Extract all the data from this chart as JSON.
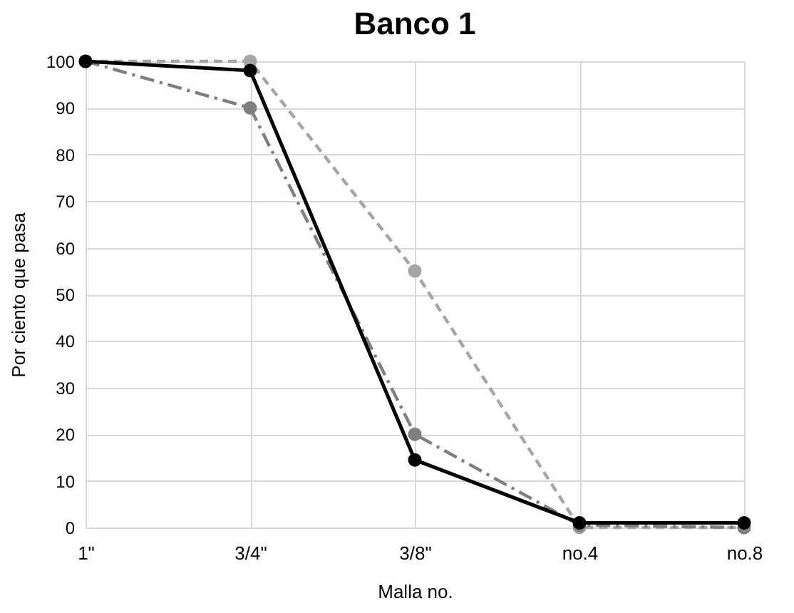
{
  "chart_data": {
    "type": "line",
    "title": "Banco 1",
    "xlabel": "Malla no.",
    "ylabel": "Por ciento que pasa",
    "categories": [
      "1\"",
      "3/4\"",
      "3/8\"",
      "no.4",
      "no.8"
    ],
    "series": [
      {
        "color": "#a5a5a5",
        "line_style": "dashed",
        "values": [
          100,
          100,
          55,
          0,
          0
        ]
      },
      {
        "color": "#7f7f7f",
        "line_style": "dashdot",
        "values": [
          100,
          90,
          20,
          0.5,
          0
        ]
      },
      {
        "color": "#000000",
        "line_style": "solid",
        "values": [
          100,
          98,
          14.5,
          1,
          1
        ]
      }
    ],
    "ylim": [
      0,
      100
    ],
    "yticks": [
      0,
      10,
      20,
      30,
      40,
      50,
      60,
      70,
      80,
      90,
      100
    ],
    "grid": true,
    "marker": "circle"
  }
}
